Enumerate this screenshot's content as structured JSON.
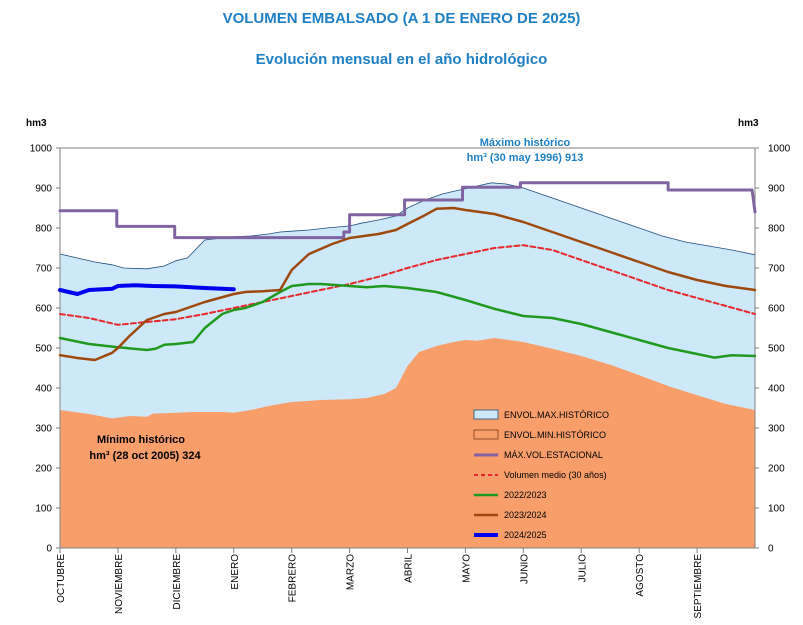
{
  "chart_data": {
    "type": "area",
    "title": "VOLUMEN EMBALSADO (A 1 DE ENERO DE 2025)",
    "subtitle": "Evolución mensual en el año hidrológico",
    "ylabel_left": "hm3",
    "ylabel_right": "hm3",
    "ylim": [
      0,
      1000
    ],
    "yticks": [
      0,
      100,
      200,
      300,
      400,
      500,
      600,
      700,
      800,
      900,
      1000
    ],
    "xlim": [
      0,
      12
    ],
    "categories": [
      "OCTUBRE",
      "NOVIEMBRE",
      "DICIEMBRE",
      "ENERO",
      "FEBRERO",
      "MARZO",
      "ABRIL",
      "MAYO",
      "JUNIO",
      "JULIO",
      "AGOSTO",
      "SEPTIEMBRE"
    ],
    "annotations": {
      "max": {
        "line1": "Máximo histórico",
        "line2": "hm³ (30 may 1996) 913",
        "x": 7.45,
        "y": 913
      },
      "min": {
        "line1": "Mínimo histórico",
        "line2": "hm³ (28 oct 2005) 324",
        "x": 0.9,
        "y": 324
      }
    },
    "series": [
      {
        "name": "ENVOL.MAX.HISTÓRICO",
        "kind": "area_max",
        "color": "#cde9f9",
        "stroke": "#1f4e79",
        "x": [
          0,
          0.3,
          0.6,
          0.9,
          1.1,
          1.5,
          1.8,
          2.0,
          2.2,
          2.5,
          2.8,
          3.0,
          3.3,
          3.6,
          3.8,
          4.0,
          4.3,
          4.6,
          5.0,
          5.2,
          5.5,
          5.8,
          6.0,
          6.3,
          6.6,
          6.9,
          7.2,
          7.45,
          7.7,
          8.0,
          8.4,
          8.8,
          9.2,
          9.6,
          10.0,
          10.4,
          10.8,
          11.2,
          11.6,
          12.0
        ],
        "y": [
          735,
          725,
          715,
          708,
          700,
          698,
          705,
          718,
          725,
          770,
          775,
          778,
          780,
          785,
          790,
          792,
          795,
          800,
          805,
          812,
          820,
          830,
          850,
          870,
          885,
          895,
          905,
          913,
          910,
          900,
          880,
          860,
          840,
          820,
          800,
          780,
          765,
          755,
          745,
          733
        ]
      },
      {
        "name": "ENVOL.MIN.HISTÓRICO",
        "kind": "area_min",
        "color": "#f89e6b",
        "stroke": "#7a3a1a",
        "x": [
          0,
          0.5,
          0.9,
          1.2,
          1.5,
          1.6,
          2.0,
          2.3,
          2.8,
          3.0,
          3.3,
          3.6,
          4.0,
          4.5,
          5.0,
          5.3,
          5.6,
          5.8,
          6.0,
          6.2,
          6.5,
          6.8,
          7.0,
          7.2,
          7.5,
          8.0,
          8.5,
          9.0,
          9.5,
          10.0,
          10.5,
          11.0,
          11.5,
          12.0
        ],
        "y": [
          345,
          335,
          324,
          330,
          328,
          336,
          338,
          340,
          340,
          338,
          345,
          355,
          365,
          370,
          372,
          375,
          385,
          400,
          455,
          490,
          505,
          515,
          520,
          518,
          525,
          515,
          498,
          480,
          458,
          432,
          405,
          382,
          360,
          345
        ]
      },
      {
        "name": "MÁX.VOL.ESTACIONAL",
        "kind": "line",
        "color": "#8064a2",
        "width": 3,
        "x": [
          0,
          0.98,
          0.98,
          1.98,
          1.98,
          3.97,
          3.97,
          4.9,
          4.9,
          4.9,
          5.0,
          5.0,
          5.95,
          5.95,
          6.95,
          6.95,
          7.95,
          7.95,
          10.5,
          10.5,
          11.95,
          12.0
        ],
        "y": [
          843,
          843,
          804,
          804,
          776,
          776,
          776,
          776,
          776,
          790,
          790,
          833,
          833,
          870,
          870,
          902,
          902,
          913,
          913,
          895,
          895,
          840
        ]
      },
      {
        "name": "Volumen medio (30 años)",
        "kind": "dashed",
        "color": "#e8262b",
        "width": 2,
        "x": [
          0,
          0.5,
          1.0,
          1.5,
          2.0,
          2.5,
          3.0,
          3.5,
          4.0,
          4.5,
          5.0,
          5.5,
          6.0,
          6.5,
          7.0,
          7.5,
          8.0,
          8.5,
          9.0,
          9.5,
          10.0,
          10.5,
          11.0,
          11.5,
          12.0
        ],
        "y": [
          585,
          575,
          558,
          565,
          572,
          585,
          600,
          615,
          630,
          645,
          660,
          678,
          700,
          720,
          735,
          750,
          757,
          745,
          720,
          695,
          670,
          645,
          625,
          605,
          585
        ]
      },
      {
        "name": "2022/2023",
        "kind": "line",
        "color": "#1f9a1f",
        "width": 2.5,
        "x": [
          0,
          0.5,
          1.0,
          1.5,
          1.65,
          1.8,
          2.0,
          2.3,
          2.5,
          2.8,
          3.0,
          3.2,
          3.5,
          3.8,
          4.0,
          4.3,
          4.5,
          5.0,
          5.3,
          5.6,
          6.0,
          6.5,
          7.0,
          7.5,
          8.0,
          8.5,
          9.0,
          9.5,
          10.0,
          10.5,
          11.0,
          11.3,
          11.6,
          12.0
        ],
        "y": [
          525,
          510,
          502,
          495,
          498,
          508,
          510,
          515,
          550,
          585,
          595,
          600,
          615,
          640,
          655,
          660,
          660,
          655,
          652,
          655,
          650,
          640,
          620,
          598,
          580,
          575,
          560,
          540,
          520,
          500,
          485,
          476,
          482,
          480
        ]
      },
      {
        "name": "2023/2024",
        "kind": "line",
        "color": "#9e480e",
        "width": 2.5,
        "x": [
          0,
          0.3,
          0.6,
          0.9,
          1.0,
          1.2,
          1.5,
          1.8,
          2.0,
          2.5,
          3.0,
          3.2,
          3.5,
          3.8,
          4.0,
          4.3,
          4.7,
          5.0,
          5.5,
          5.8,
          6.0,
          6.3,
          6.5,
          6.8,
          7.0,
          7.5,
          8.0,
          8.5,
          9.0,
          9.5,
          10.0,
          10.5,
          11.0,
          11.5,
          12.0
        ],
        "y": [
          482,
          475,
          470,
          488,
          500,
          530,
          570,
          585,
          590,
          615,
          635,
          640,
          642,
          645,
          695,
          735,
          760,
          775,
          785,
          795,
          810,
          832,
          848,
          850,
          845,
          835,
          815,
          790,
          765,
          740,
          715,
          690,
          670,
          655,
          645
        ]
      },
      {
        "name": "2024/2025",
        "kind": "line",
        "color": "#0000ee",
        "width": 4,
        "x": [
          0,
          0.3,
          0.5,
          0.9,
          1.0,
          1.3,
          1.6,
          2.0,
          2.5,
          3.0
        ],
        "y": [
          645,
          635,
          645,
          648,
          655,
          657,
          655,
          654,
          650,
          647
        ]
      }
    ],
    "legend_position": "lower-right"
  }
}
